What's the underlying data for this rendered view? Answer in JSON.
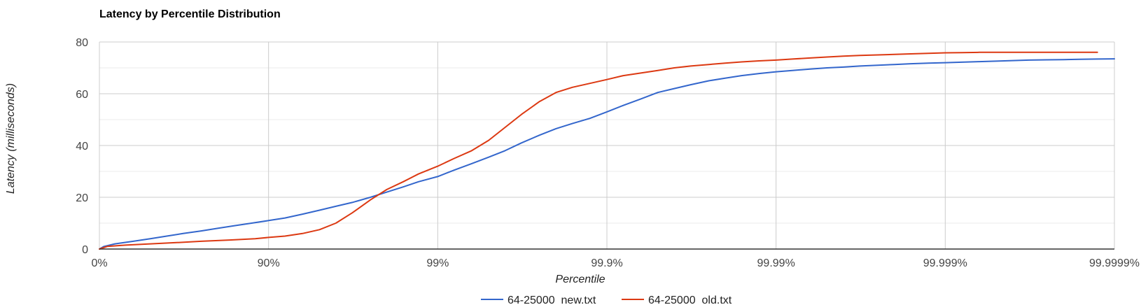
{
  "chart_data": {
    "type": "line",
    "title": "Latency by Percentile Distribution",
    "xlabel": "Percentile",
    "ylabel": "Latency (milliseconds)",
    "x_scale": "log-percentile",
    "x_ticks": [
      "0%",
      "90%",
      "99%",
      "99.9%",
      "99.99%",
      "99.999%",
      "99.9999%"
    ],
    "y_ticks": [
      0,
      20,
      40,
      60,
      80
    ],
    "ylim": [
      0,
      80
    ],
    "grid": true,
    "legend_position": "bottom",
    "series": [
      {
        "name": "64-25000_new.txt",
        "color": "#3366cc",
        "percentile": [
          0,
          6,
          19,
          37,
          50,
          60,
          68,
          75,
          80,
          84,
          87.4,
          90,
          92,
          93.7,
          95,
          96,
          96.8,
          97.5,
          98,
          98.4,
          98.7,
          99,
          99.2,
          99.37,
          99.5,
          99.6,
          99.68,
          99.75,
          99.8,
          99.84,
          99.874,
          99.9,
          99.92,
          99.937,
          99.95,
          99.96,
          99.968,
          99.975,
          99.98,
          99.984,
          99.9874,
          99.99,
          99.992,
          99.9937,
          99.995,
          99.996,
          99.9968,
          99.9975,
          99.998,
          99.9984,
          99.99874,
          99.999,
          99.9992,
          99.99937,
          99.9995,
          99.9996,
          99.99968,
          99.99975,
          99.9998,
          99.99984,
          99.999874,
          99.9999,
          99.99992,
          99.999937,
          99.99995,
          99.99996,
          99.999968,
          99.999975,
          99.99998,
          99.999984,
          99.9999874,
          99.99999,
          99.999992,
          99.9999937,
          99.999995,
          99.999996,
          99.9999968,
          99.9999975,
          99.999998,
          99.9999984,
          99.99999874,
          99.999999,
          99.9999992,
          99.99999937,
          99.9999995,
          99.9999996,
          99.99999968,
          99.99999975,
          99.9999998,
          99.99999984,
          99.999999874,
          99.9999999,
          99.99999992,
          99.999999937,
          99.99999995,
          99.99999996,
          99.999999968,
          99.999999975,
          99.99999998,
          99.999999984,
          99.9999999874,
          99.99999999,
          99.999999992,
          99.9999999937,
          99.999999995,
          99.999999996,
          99.9999999968,
          99.9999999975,
          99.999999998,
          99.9999999984,
          99.99999999874,
          99.999999999,
          99.9999999992,
          99.99999999937,
          99.9999999995,
          99.9999999996,
          99.99999999968,
          99.99999999975,
          99.9999999998,
          99.99999999984,
          99.999999999874,
          99.9999999999,
          99.99999999992,
          99.999999999937,
          99.99999999995,
          99.99999999996,
          99.999999999968,
          99.999999999975,
          99.99999999998,
          99.999999999984,
          99.9999999999874,
          99.99999999999,
          99.999999999992,
          99.9999999999937,
          99.999999999995,
          99.999999999996,
          99.9999999999968,
          99.9999999999975,
          99.999999999998,
          99.9999999999984,
          99.99999999999874,
          99.999999999999,
          99.9999999999992,
          99.99999999999937,
          99.9999999999995,
          99.9999999999996,
          99.99999999999967,
          99.99999999999974,
          99.9999999999998,
          99.99999999999984,
          99.99999999999987,
          99.9999999999999
        ],
        "latency": [
          0,
          1,
          2,
          3,
          4,
          5,
          6,
          7,
          8,
          9,
          10,
          11,
          12,
          13.5,
          15,
          16.5,
          18,
          20,
          22,
          24,
          26,
          28,
          30.5,
          33,
          35.5,
          38,
          41,
          44,
          46.5,
          48.5,
          50.5,
          53,
          55.5,
          58,
          60.5,
          62,
          63.5,
          65,
          66,
          67,
          67.8,
          68.5,
          69,
          69.5,
          70,
          70.3,
          70.7,
          71,
          71.3,
          71.6,
          71.8,
          72,
          72.2,
          72.4,
          72.6,
          72.8,
          73,
          73.1,
          73.2,
          73.3,
          73.4,
          73.5,
          73.5,
          73.5,
          73.5,
          73.5,
          73.5,
          73.5,
          73.5,
          73.5,
          73.5,
          73.5,
          73.5,
          73.5,
          73.5,
          73.5,
          73.5,
          73.5,
          73.5,
          73.5,
          73.5,
          73.5,
          73.5,
          73.5,
          73.5,
          73.5,
          73.5,
          73.5,
          73.5,
          73.5,
          73.5,
          73.5,
          73.5,
          73.5,
          73.5,
          73.5,
          73.5,
          73.5,
          73.5,
          73.5,
          73.5,
          73.5,
          73.5,
          73.5,
          73.5,
          73.5,
          73.5,
          73.5,
          73.5,
          73.5,
          73.5,
          73.5,
          73.5,
          73.5,
          73.5,
          73.5,
          73.5,
          73.5,
          73.5,
          73.5,
          73.5,
          73.5,
          73.5,
          73.5,
          73.5,
          73.5,
          73.5,
          73.5,
          73.5,
          73.5,
          73.5,
          73.5,
          73.5,
          73.5,
          73.5,
          73.5,
          73.5,
          73.5,
          73.5,
          73.5,
          73.5,
          73.5,
          73.5,
          73.5,
          73.5,
          73.5
        ]
      },
      {
        "name": "64-25000_old.txt",
        "color": "#dc3912",
        "percentile": [
          0,
          10,
          30,
          50,
          65,
          75,
          83,
          88,
          90,
          92,
          93.7,
          95,
          96,
          96.8,
          97.5,
          98,
          98.4,
          98.7,
          99,
          99.2,
          99.37,
          99.5,
          99.6,
          99.68,
          99.75,
          99.8,
          99.84,
          99.874,
          99.9,
          99.92,
          99.937,
          99.95,
          99.96,
          99.968,
          99.975,
          99.98,
          99.984,
          99.9874,
          99.99,
          99.992,
          99.9937,
          99.995,
          99.996,
          99.9968,
          99.9975,
          99.998,
          99.9984,
          99.99874,
          99.999,
          99.9992,
          99.99937,
          99.9995,
          99.9996,
          99.99968,
          99.99975,
          99.9998,
          99.99984,
          99.999874
        ],
        "latency": [
          0,
          1,
          1.5,
          2,
          2.5,
          3,
          3.5,
          4,
          4.5,
          5,
          6,
          7.5,
          10,
          14,
          19,
          23,
          26,
          29,
          32,
          35,
          38,
          42,
          47,
          52,
          57,
          60.5,
          62.5,
          64,
          65.5,
          67,
          68,
          69,
          70,
          70.7,
          71.3,
          71.8,
          72.3,
          72.7,
          73,
          73.4,
          73.8,
          74.2,
          74.5,
          74.8,
          75,
          75.2,
          75.4,
          75.6,
          75.8,
          75.9,
          76,
          76,
          76,
          76,
          76,
          76,
          76,
          76
        ]
      }
    ]
  }
}
